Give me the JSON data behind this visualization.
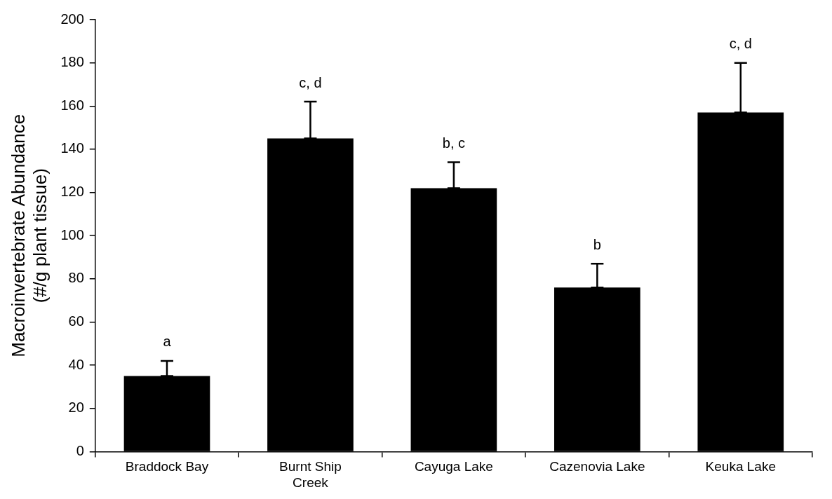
{
  "chart_data": {
    "type": "bar",
    "ylabel": "Macroinvertebrate Abundance (#/g plant tissue)",
    "categories": [
      "Braddock Bay",
      "Burnt Ship Creek",
      "Cayuga Lake",
      "Cazenovia Lake",
      "Keuka Lake"
    ],
    "values": [
      35,
      145,
      122,
      76,
      157
    ],
    "color": "#000000",
    "errors": [
      [
        35,
        42
      ],
      [
        145,
        162
      ],
      [
        122,
        134
      ],
      [
        76,
        87
      ],
      [
        157,
        180
      ]
    ],
    "ylim": [
      0,
      200
    ],
    "yticks": [
      0,
      20,
      40,
      60,
      80,
      100,
      120,
      140,
      160,
      180,
      200
    ],
    "grid": false,
    "legend": false,
    "annotations": [
      {
        "text": "a",
        "x": "Braddock Bay",
        "y": 42
      },
      {
        "text": "c, d",
        "x": "Burnt Ship Creek",
        "y": 162
      },
      {
        "text": "b, c",
        "x": "Cayuga Lake",
        "y": 134
      },
      {
        "text": "b",
        "x": "Cazenovia Lake",
        "y": 87
      },
      {
        "text": "c, d",
        "x": "Keuka Lake",
        "y": 180
      }
    ]
  }
}
